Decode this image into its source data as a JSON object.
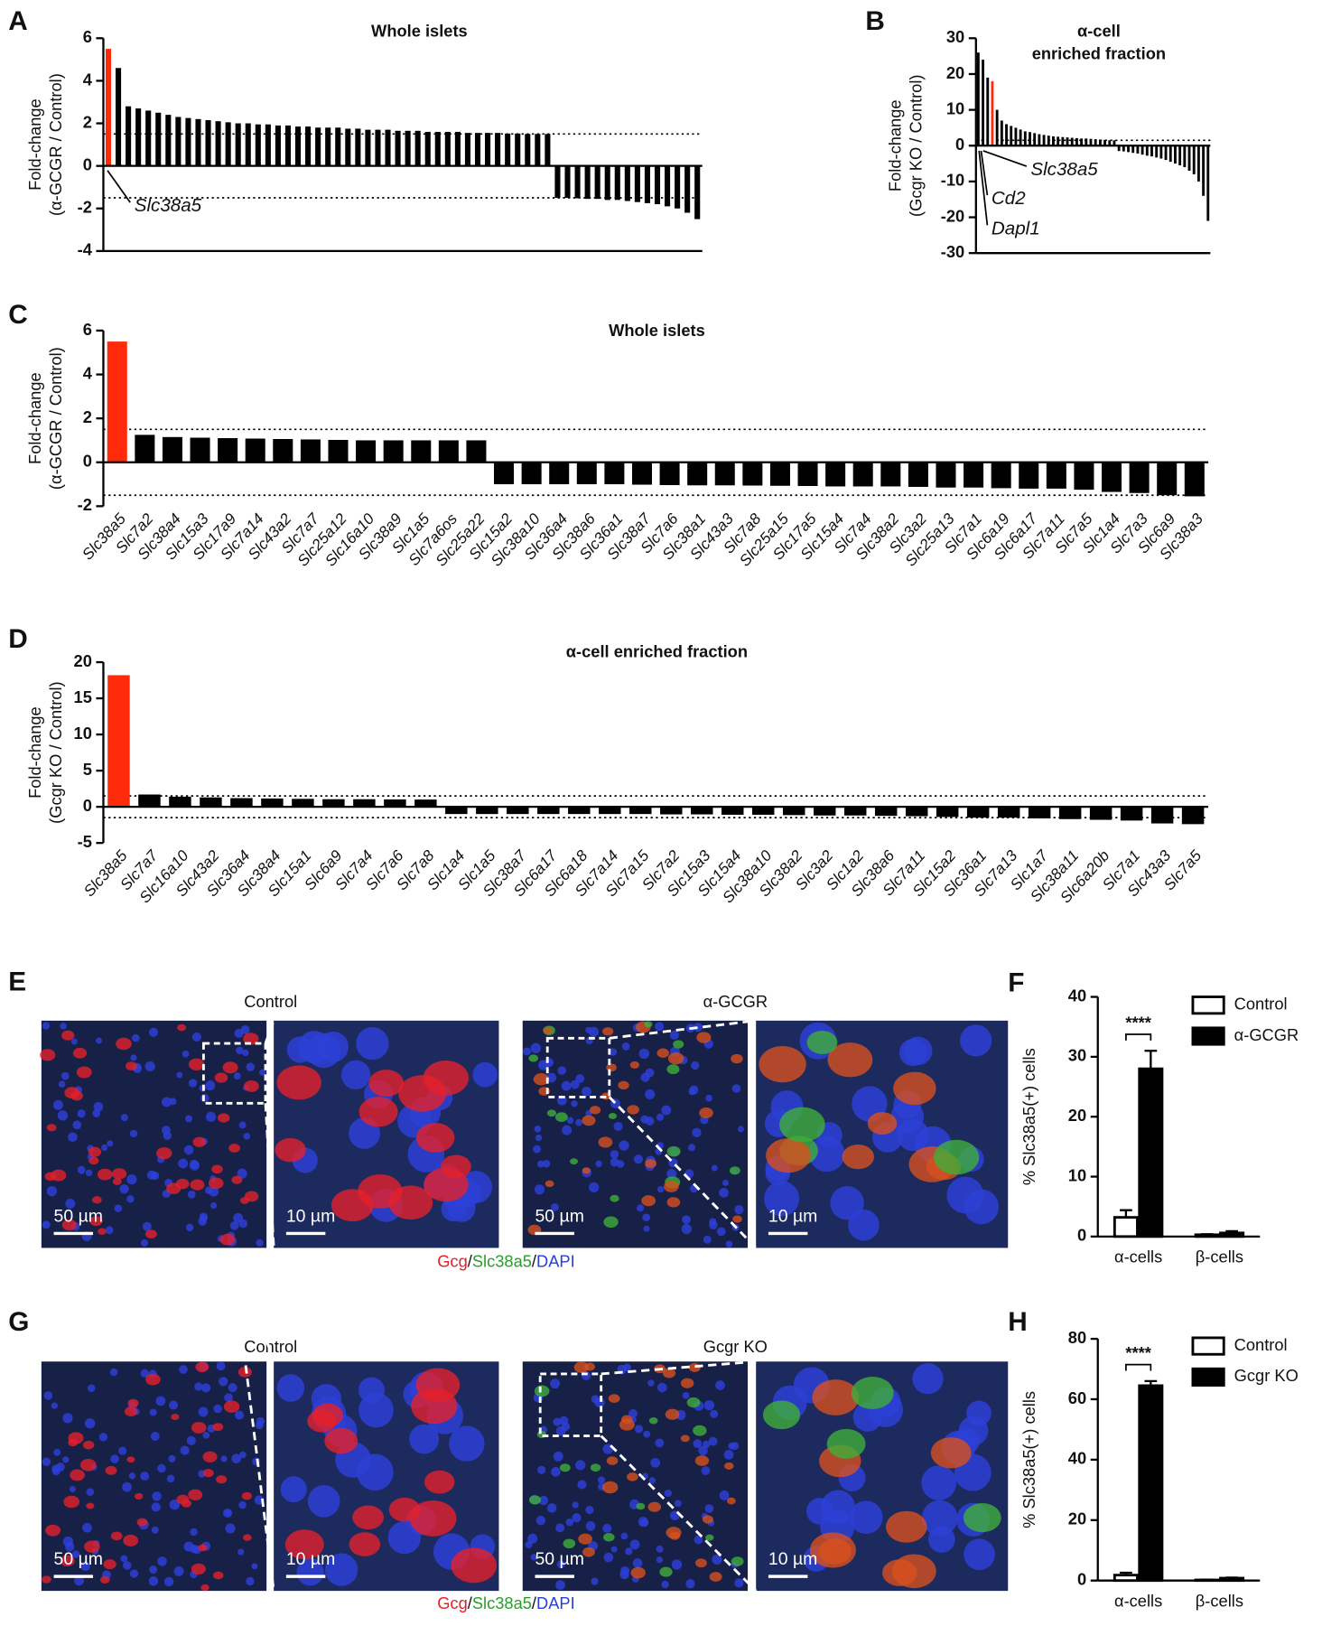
{
  "chart_data": [
    {
      "type": "bar",
      "panel": "A",
      "title": "Whole islets",
      "ylabel": [
        "Fold-change",
        "(α-GCGR / Control)"
      ],
      "ylim": [
        -4,
        6
      ],
      "yticks": [
        -4,
        -2,
        0,
        2,
        4,
        6
      ],
      "color": "#000000",
      "highlight": {
        "index": 0,
        "color": "#ff2a0a"
      },
      "reference_lines": [
        1.5,
        -1.5
      ],
      "annotations": [
        "Slc38a5"
      ],
      "values": [
        5.5,
        4.6,
        2.8,
        2.7,
        2.6,
        2.5,
        2.4,
        2.3,
        2.25,
        2.2,
        2.15,
        2.1,
        2.05,
        2.0,
        2.0,
        1.95,
        1.95,
        1.9,
        1.9,
        1.85,
        1.85,
        1.8,
        1.8,
        1.8,
        1.75,
        1.75,
        1.7,
        1.7,
        1.7,
        1.65,
        1.65,
        1.65,
        1.6,
        1.6,
        1.6,
        1.6,
        1.55,
        1.55,
        1.55,
        1.55,
        1.52,
        1.52,
        1.5,
        1.5,
        1.5,
        -1.5,
        -1.5,
        -1.52,
        -1.55,
        -1.55,
        -1.6,
        -1.6,
        -1.65,
        -1.7,
        -1.75,
        -1.8,
        -1.9,
        -2.0,
        -2.2,
        -2.5
      ]
    },
    {
      "type": "bar",
      "panel": "B",
      "title": [
        "α-cell",
        "enriched fraction"
      ],
      "ylabel": [
        "Fold-change",
        "(Gcgr KO / Control)"
      ],
      "ylim": [
        -30,
        30
      ],
      "yticks": [
        -30,
        -20,
        -10,
        0,
        10,
        20,
        30
      ],
      "color": "#000000",
      "highlight": {
        "index": 3,
        "color": "#ff2a0a"
      },
      "reference_lines": [
        1.5
      ],
      "annotations": [
        "Slc38a5",
        "Cd2",
        "Dapl1"
      ],
      "values": [
        26,
        24,
        19,
        18,
        10,
        7,
        6,
        5.5,
        5,
        4.5,
        4,
        3.8,
        3.5,
        3.2,
        3,
        2.8,
        2.6,
        2.5,
        2.4,
        2.3,
        2.2,
        2.1,
        2,
        2,
        1.9,
        1.8,
        1.7,
        1.6,
        1.5,
        1.5,
        -1.5,
        -1.6,
        -1.8,
        -2,
        -2.2,
        -2.5,
        -2.8,
        -3,
        -3.3,
        -3.6,
        -4,
        -4.5,
        -5,
        -5.5,
        -6,
        -7,
        -8,
        -10,
        -14,
        -21
      ]
    },
    {
      "type": "bar",
      "panel": "C",
      "title": "Whole islets",
      "ylabel": [
        "Fold-change",
        "(α-GCGR / Control)"
      ],
      "ylim": [
        -2,
        6
      ],
      "yticks": [
        -2,
        0,
        2,
        4,
        6
      ],
      "color": "#000000",
      "highlight": {
        "index": 0,
        "color": "#ff2a0a"
      },
      "reference_lines": [
        1.5,
        -1.5
      ],
      "categories": [
        "Slc38a5",
        "Slc7a2",
        "Slc38a4",
        "Slc15a3",
        "Slc17a9",
        "Slc7a14",
        "Slc43a2",
        "Slc7a7",
        "Slc25a12",
        "Slc16a10",
        "Slc38a9",
        "Slc1a5",
        "Slc7a6os",
        "Slc25a22",
        "Slc15a2",
        "Slc38a10",
        "Slc36a4",
        "Slc38a6",
        "Slc36a1",
        "Slc38a7",
        "Slc7a6",
        "Slc38a1",
        "Slc43a3",
        "Slc7a8",
        "Slc25a15",
        "Slc17a5",
        "Slc15a4",
        "Slc7a4",
        "Slc38a2",
        "Slc3a2",
        "Slc25a13",
        "Slc7a1",
        "Slc6a19",
        "Slc6a17",
        "Slc7a11",
        "Slc7a5",
        "Slc1a4",
        "Slc7a3",
        "Slc6a9",
        "Slc38a3"
      ],
      "values": [
        5.5,
        1.25,
        1.15,
        1.12,
        1.1,
        1.08,
        1.06,
        1.04,
        1.02,
        1.0,
        1.0,
        1.0,
        1.0,
        1.0,
        -1.0,
        -1.0,
        -1.0,
        -1.0,
        -1.0,
        -1.02,
        -1.04,
        -1.05,
        -1.05,
        -1.06,
        -1.07,
        -1.08,
        -1.1,
        -1.1,
        -1.1,
        -1.12,
        -1.15,
        -1.15,
        -1.18,
        -1.2,
        -1.2,
        -1.25,
        -1.35,
        -1.4,
        -1.5,
        -1.55
      ]
    },
    {
      "type": "bar",
      "panel": "D",
      "title": "α-cell enriched fraction",
      "ylabel": [
        "Fold-change",
        "(Gcgr KO / Control)"
      ],
      "ylim": [
        -5,
        20
      ],
      "yticks": [
        -5,
        0,
        5,
        10,
        15,
        20
      ],
      "color": "#000000",
      "highlight": {
        "index": 0,
        "color": "#ff2a0a"
      },
      "reference_lines": [
        1.5,
        -1.5
      ],
      "categories": [
        "Slc38a5",
        "Slc7a7",
        "Slc16a10",
        "Slc43a2",
        "Slc36a4",
        "Slc38a4",
        "Slc15a1",
        "Slc6a9",
        "Slc7a4",
        "Slc7a6",
        "Slc7a8",
        "Slc1a4",
        "Slc1a5",
        "Slc38a7",
        "Slc6a17",
        "Slc6a18",
        "Slc7a14",
        "Slc7a15",
        "Slc7a2",
        "Slc15a3",
        "Slc15a4",
        "Slc38a10",
        "Slc38a2",
        "Slc3a2",
        "Slc1a2",
        "Slc38a6",
        "Slc7a11",
        "Slc15a2",
        "Slc36a1",
        "Slc7a13",
        "Slc1a7",
        "Slc38a11",
        "Slc6a20b",
        "Slc7a1",
        "Slc43a3",
        "Slc7a5"
      ],
      "values": [
        18.2,
        1.7,
        1.4,
        1.3,
        1.2,
        1.15,
        1.1,
        1.05,
        1.05,
        1.02,
        1.0,
        -1.0,
        -1.0,
        -1.0,
        -1.0,
        -1.0,
        -1.0,
        -1.0,
        -1.05,
        -1.05,
        -1.1,
        -1.1,
        -1.15,
        -1.2,
        -1.2,
        -1.25,
        -1.3,
        -1.4,
        -1.5,
        -1.5,
        -1.6,
        -1.7,
        -1.8,
        -1.9,
        -2.3,
        -2.4
      ]
    },
    {
      "type": "bar",
      "panel": "F",
      "ylabel": [
        "% Slc38a5(+) cells"
      ],
      "ylim": [
        0,
        40
      ],
      "yticks": [
        0,
        10,
        20,
        30,
        40
      ],
      "categories": [
        "α-cells",
        "β-cells"
      ],
      "significance": "****",
      "series": [
        {
          "name": "Control",
          "color": "#ffffff",
          "values": [
            3.2,
            0.3
          ],
          "errors": [
            1.2,
            0.1
          ]
        },
        {
          "name": "α-GCGR",
          "color": "#000000",
          "values": [
            28,
            0.6
          ],
          "errors": [
            3,
            0.3
          ]
        }
      ]
    },
    {
      "type": "bar",
      "panel": "H",
      "ylabel": [
        "% Slc38a5(+) cells"
      ],
      "ylim": [
        0,
        80
      ],
      "yticks": [
        0,
        20,
        40,
        60,
        80
      ],
      "categories": [
        "α-cells",
        "β-cells"
      ],
      "significance": "****",
      "series": [
        {
          "name": "Control",
          "color": "#ffffff",
          "values": [
            1.8,
            0.2
          ],
          "errors": [
            0.8,
            0.1
          ]
        },
        {
          "name": "Gcgr KO",
          "color": "#000000",
          "values": [
            64.5,
            0.8
          ],
          "errors": [
            1.5,
            0.2
          ]
        }
      ]
    }
  ],
  "image_panels": [
    {
      "panel": "E",
      "titles": [
        "Control",
        "α-GCGR"
      ],
      "scale_bars": [
        "50 µm",
        "10 µm",
        "50 µm",
        "10 µm"
      ],
      "caption": [
        "Gcg",
        "/",
        "Slc38a5",
        "/",
        "DAPI"
      ]
    },
    {
      "panel": "G",
      "titles": [
        "Control",
        "Gcgr KO"
      ],
      "scale_bars": [
        "50 µm",
        "10 µm",
        "50 µm",
        "10 µm"
      ],
      "caption": [
        "Gcg",
        "/",
        "Slc38a5",
        "/",
        "DAPI"
      ]
    }
  ]
}
